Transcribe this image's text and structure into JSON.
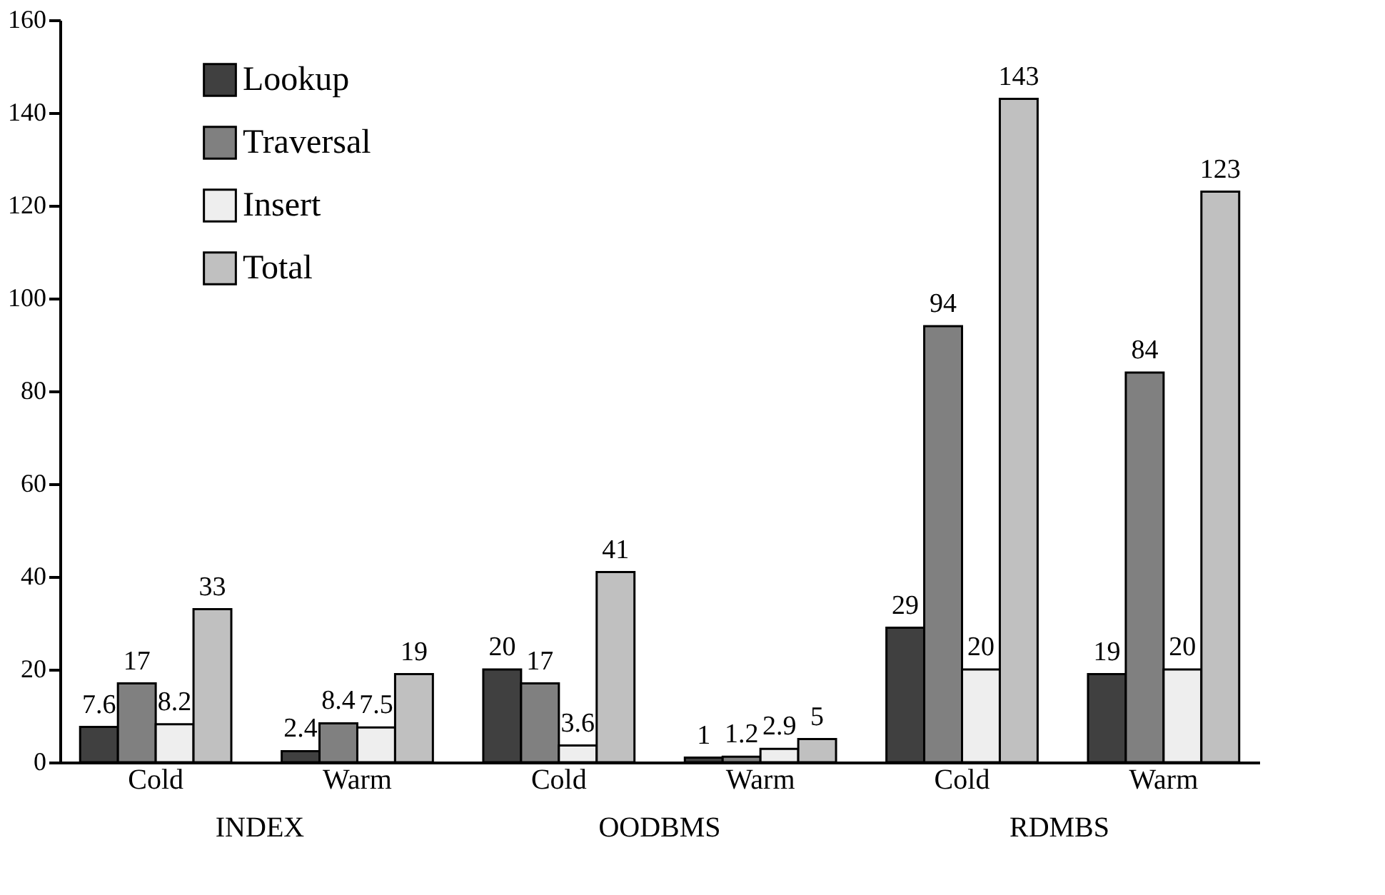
{
  "chart_data": {
    "type": "bar",
    "categories": [
      "Cold",
      "Warm",
      "Cold",
      "Warm",
      "Cold",
      "Warm"
    ],
    "series": [
      {
        "name": "Lookup",
        "color": "#404040",
        "values": [
          7.6,
          2.4,
          20,
          1,
          29,
          19
        ]
      },
      {
        "name": "Traversal",
        "color": "#808080",
        "values": [
          17,
          8.4,
          17,
          1.2,
          94,
          84
        ]
      },
      {
        "name": "Insert",
        "color": "#eeeeee",
        "values": [
          8.2,
          7.5,
          3.6,
          2.9,
          20,
          20
        ]
      },
      {
        "name": "Total",
        "color": "#c0c0c0",
        "values": [
          33,
          19,
          41,
          5,
          143,
          123
        ]
      }
    ],
    "annotations": [
      "INDEX",
      "OODBMS",
      "RDMBS"
    ],
    "ylim": [
      0,
      160
    ],
    "yticks": [
      0,
      20,
      40,
      60,
      80,
      100,
      120,
      140,
      160
    ],
    "data_labels": true,
    "legend": "top left",
    "grid": false
  }
}
